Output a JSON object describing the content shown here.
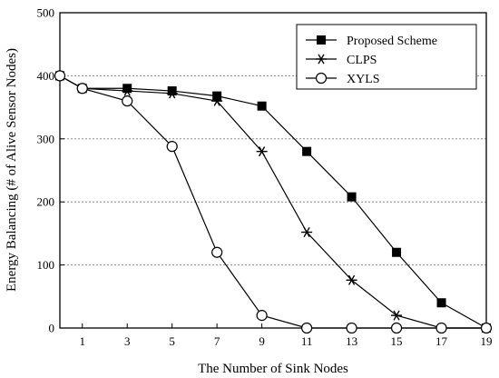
{
  "chart_data": {
    "type": "line",
    "title": "",
    "xlabel": "The Number of Sink Nodes",
    "ylabel": "Energy Balancing (# of Alive Sensor Nodes)",
    "xlim": [
      0,
      19
    ],
    "ylim": [
      0,
      500
    ],
    "xticks": [
      "1",
      "3",
      "5",
      "7",
      "9",
      "11",
      "13",
      "15",
      "17",
      "19"
    ],
    "yticks": [
      "0",
      "100",
      "200",
      "300",
      "400",
      "500"
    ],
    "grid": "horizontal dotted",
    "legend": "top-right",
    "series": [
      {
        "name": "Proposed Scheme",
        "marker": "filled-square",
        "x": [
          0,
          1,
          3,
          5,
          7,
          9,
          11,
          13,
          15,
          17,
          19
        ],
        "y": [
          400,
          380,
          380,
          376,
          368,
          352,
          280,
          208,
          120,
          40,
          0
        ]
      },
      {
        "name": "CLPS",
        "marker": "asterisk",
        "x": [
          0,
          1,
          3,
          5,
          7,
          9,
          11,
          13,
          15,
          17,
          19
        ],
        "y": [
          400,
          380,
          376,
          372,
          360,
          280,
          152,
          76,
          20,
          0,
          0
        ]
      },
      {
        "name": "XYLS",
        "marker": "open-circle",
        "x": [
          0,
          1,
          3,
          5,
          7,
          9,
          11,
          13,
          15,
          17,
          19
        ],
        "y": [
          400,
          380,
          360,
          288,
          120,
          20,
          0,
          0,
          0,
          0,
          0
        ]
      }
    ]
  }
}
